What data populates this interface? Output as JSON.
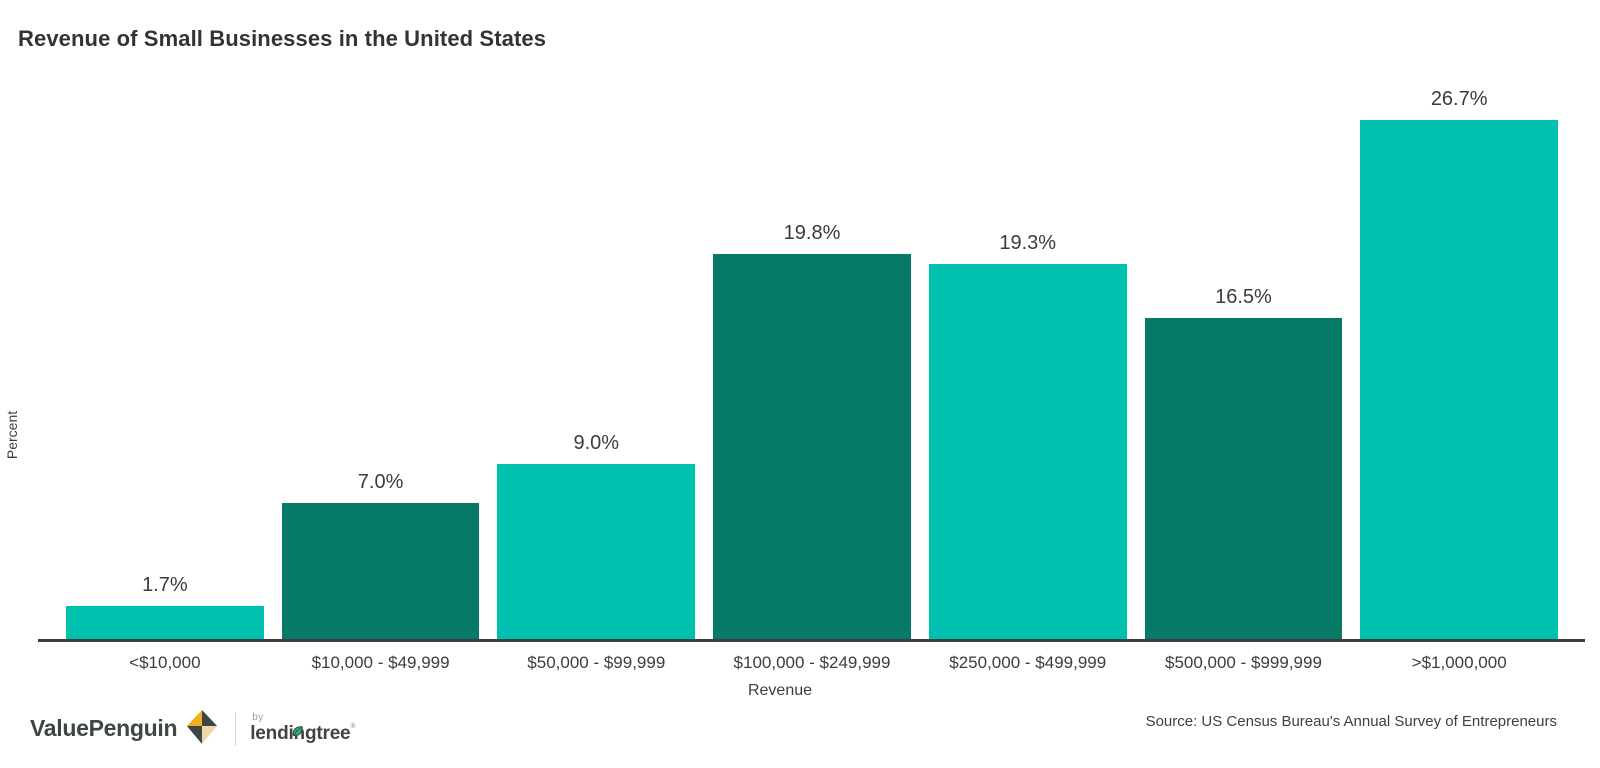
{
  "header": {
    "title": "Revenue of Small Businesses in the United States"
  },
  "chart_data": {
    "type": "bar",
    "title": "Revenue of Small Businesses in the United States",
    "xlabel": "Revenue",
    "ylabel": "Percent",
    "categories": [
      "<$10,000",
      "$10,000 - $49,999",
      "$50,000 - $99,999",
      "$100,000 - $249,999",
      "$250,000 - $499,999",
      "$500,000 - $999,999",
      ">$1,000,000"
    ],
    "values": [
      1.7,
      7.0,
      9.0,
      19.8,
      19.3,
      16.5,
      26.7
    ],
    "value_labels": [
      "1.7%",
      "7.0%",
      "9.0%",
      "19.8%",
      "19.3%",
      "16.5%",
      "26.7%"
    ],
    "bar_colors": [
      "#00C1AD",
      "#067A66",
      "#00C1AD",
      "#067A66",
      "#00C1AD",
      "#067A66",
      "#00C1AD"
    ],
    "ylim": [
      0,
      28
    ],
    "grid": false,
    "legend": "none"
  },
  "footer": {
    "source": "Source: US Census Bureau's Annual Survey of Entrepreneurs",
    "logo": {
      "brand": "ValuePenguin",
      "by": "by",
      "partner": "lendingtree",
      "mark": "®"
    }
  },
  "colors": {
    "bar_light": "#00C1AD",
    "bar_dark": "#067A66",
    "axis": "#3D3D3D",
    "slate": "#3E4543",
    "gold": "#F2B01E",
    "beige": "#EBD9A9",
    "leaf_green": "#1FBE71"
  }
}
